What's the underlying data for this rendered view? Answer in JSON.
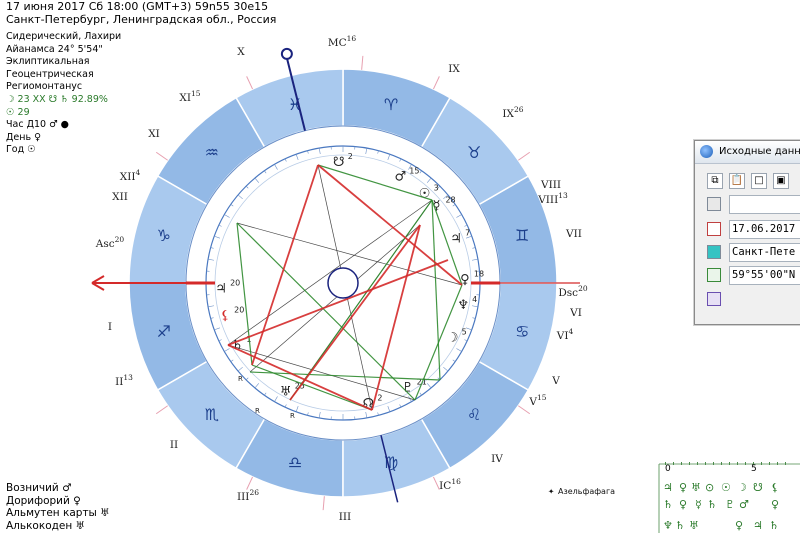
{
  "header": {
    "line1": "17 июня 2017  Сб  18:00 (GMT+3) 59n55  30e15",
    "line2": "Санкт-Петербург, Ленинградская обл., Россия"
  },
  "settings": {
    "zodiac": "Сидерический, Лахири",
    "ayanamsa": "Айанамса 24° 5'54\"",
    "coords": "Эклиптикальная",
    "center": "Геоцентрическая",
    "houses": "Региомонтанус",
    "moon_line": "☽  23 XX  ☋  ♄  92.89%",
    "sun_line": "☉  29",
    "hour_line": "Час Д10  ♂  ●",
    "day_line": "День  ♀",
    "year_line": "Год  ☉"
  },
  "bottom_left": {
    "vozn": "Возничий  ♂",
    "dorif": "Дорифорий  ♀",
    "almuten": "Альмутен карты  ♅",
    "alkokoden": "Алькокоден  ♅"
  },
  "wheel": {
    "house_numbers": [
      "I",
      "II",
      "III",
      "IV",
      "V",
      "VI",
      "VII",
      "VIII",
      "IX",
      "X",
      "XI",
      "XII"
    ],
    "house_labels": [
      {
        "t": "I"
      },
      {
        "t": "II",
        "s": "13"
      },
      {
        "t": "II"
      },
      {
        "t": "III",
        "s": "26"
      },
      {
        "t": "III"
      },
      {
        "t": "IC",
        "s": "16"
      },
      {
        "t": "IV"
      },
      {
        "t": "V",
        "s": "15"
      },
      {
        "t": "V"
      },
      {
        "t": "VI",
        "s": "4"
      },
      {
        "t": "VI"
      },
      {
        "t": "Dsc",
        "s": "20"
      },
      {
        "t": "VII"
      },
      {
        "t": "VIII",
        "s": "13"
      },
      {
        "t": "VIII"
      },
      {
        "t": "IX",
        "s": "26"
      },
      {
        "t": "IX"
      },
      {
        "t": "MC",
        "s": "16"
      },
      {
        "t": "X"
      },
      {
        "t": "XI",
        "s": "15"
      },
      {
        "t": "XI"
      },
      {
        "t": "XII",
        "s": "4"
      },
      {
        "t": "XII"
      },
      {
        "t": "Asc",
        "s": "20"
      }
    ],
    "signs": [
      "♈",
      "♉",
      "♊",
      "♋",
      "♌",
      "♍",
      "♎",
      "♏",
      "♐",
      "♑",
      "♒",
      "♓"
    ],
    "planets": [
      {
        "g": "☋",
        "deg": "2"
      },
      {
        "g": "♂",
        "deg": "15"
      },
      {
        "g": "☉",
        "deg": "3"
      },
      {
        "g": "☿",
        "deg": "28"
      },
      {
        "g": "♃",
        "deg": "7"
      },
      {
        "g": "♀",
        "deg": "18"
      },
      {
        "g": "♆",
        "deg": "4"
      },
      {
        "g": "☽",
        "deg": "5"
      },
      {
        "g": "♇",
        "deg": "21"
      },
      {
        "g": "☊",
        "deg": "2"
      },
      {
        "g": "♅",
        "deg": "25"
      },
      {
        "g": "♄",
        "deg": "1"
      },
      {
        "g": "⚸",
        "deg": "20"
      },
      {
        "g": "♃",
        "deg": "20"
      }
    ],
    "retro": "R",
    "star_label": "Азельфафага"
  },
  "panel": {
    "title": "Исходные данны",
    "date": "17.06.2017",
    "city": "Санкт-Пете",
    "coord": "59°55'00\"N"
  },
  "mini_grid": {
    "col0": "0",
    "col5": "5"
  },
  "colors": {
    "ring": "#9cc0e8",
    "ring_dark": "#7aa7de",
    "aspect_red": "#d42a2a",
    "aspect_green": "#2e8a2e",
    "axis": "#1a237e"
  }
}
